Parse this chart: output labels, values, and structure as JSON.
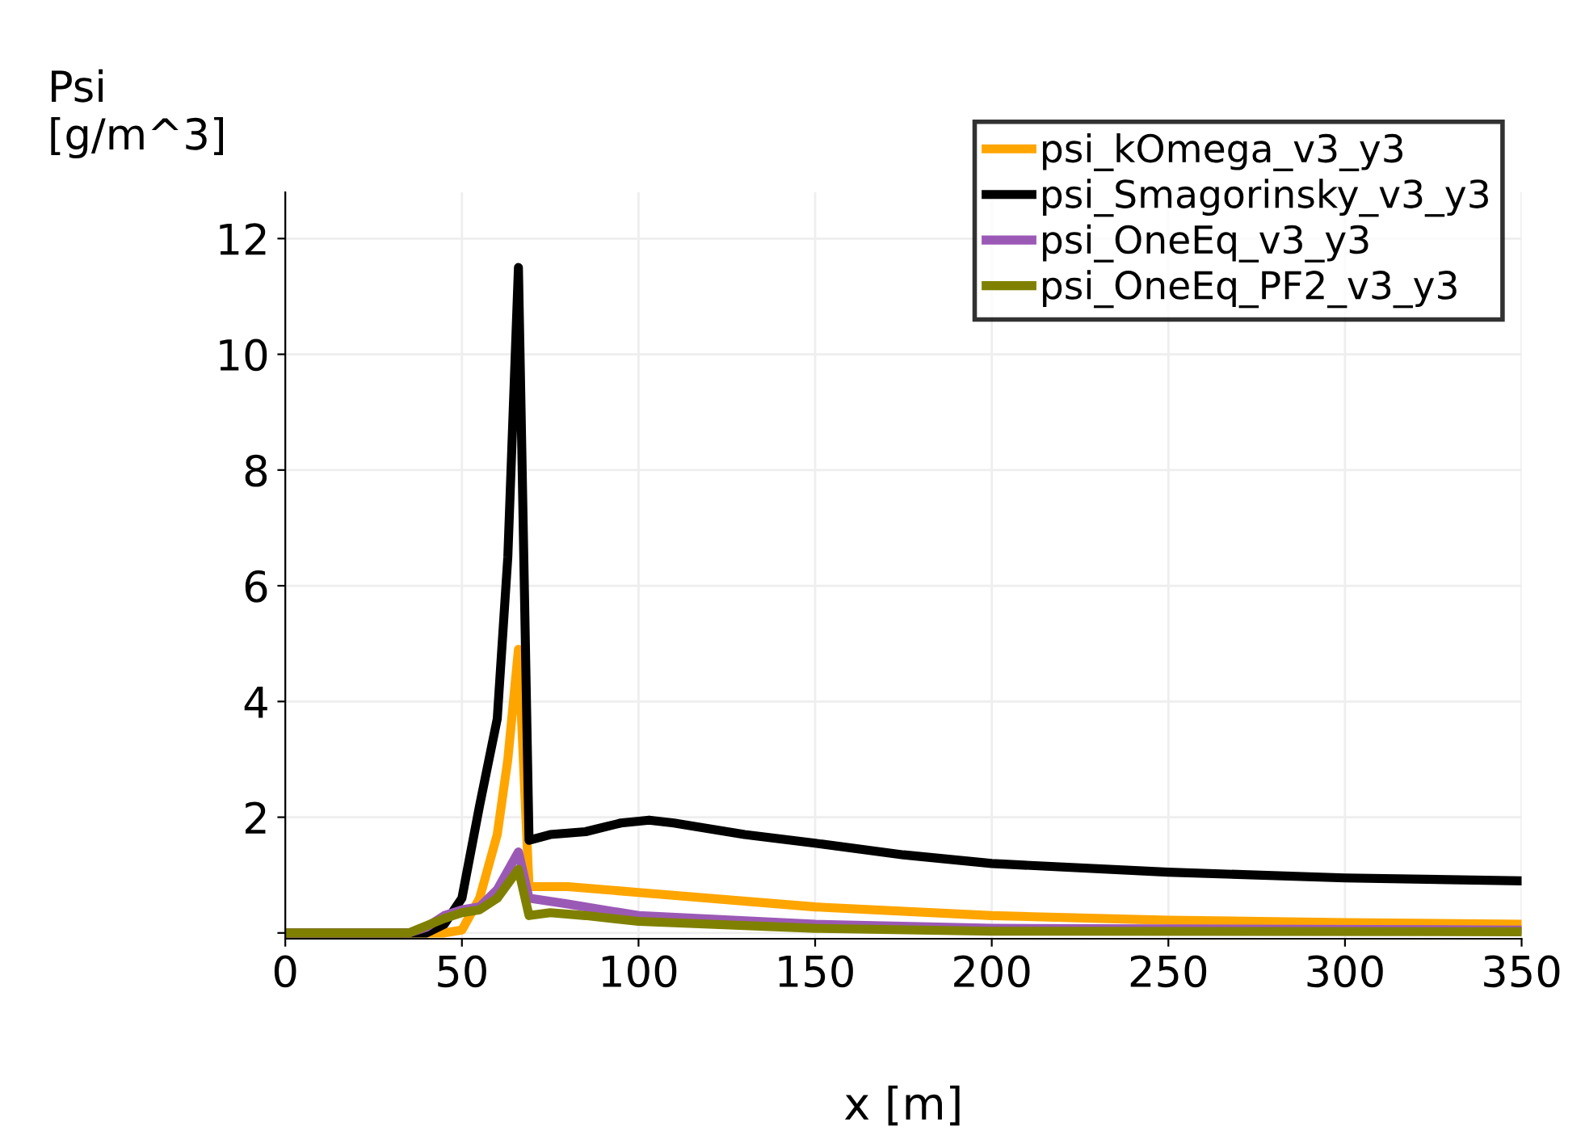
{
  "chart_data": {
    "type": "line",
    "xlabel": "x [m]",
    "ylabel": "Psi\n[g/m^3]",
    "xlim": [
      0,
      350
    ],
    "ylim": [
      -0.1,
      12.8
    ],
    "xticks": [
      0,
      50,
      100,
      150,
      200,
      250,
      300,
      350
    ],
    "yticks": [
      {
        "value": 0,
        "label": null
      },
      2,
      4,
      6,
      8,
      10,
      12
    ],
    "grid": true,
    "legend": "top right",
    "line_style": "solid",
    "marker": "none",
    "series": [
      {
        "name": "psi_kOmega_v3_y3",
        "color": "#ffa500",
        "x": [
          0,
          45,
          50,
          55,
          60,
          63,
          66,
          69,
          80,
          100,
          150,
          200,
          250,
          300,
          350
        ],
        "values": [
          0,
          0,
          0.05,
          0.6,
          1.7,
          3.0,
          4.9,
          0.8,
          0.8,
          0.7,
          0.45,
          0.3,
          0.22,
          0.18,
          0.15
        ]
      },
      {
        "name": "psi_Smagorinsky_v3_y3",
        "color": "#000000",
        "x": [
          0,
          35,
          40,
          45,
          50,
          55,
          60,
          63,
          66,
          69,
          75,
          85,
          95,
          103,
          110,
          130,
          150,
          175,
          200,
          250,
          300,
          350
        ],
        "values": [
          0,
          0,
          0,
          0.15,
          0.6,
          2.2,
          3.7,
          6.5,
          11.5,
          1.6,
          1.7,
          1.75,
          1.9,
          1.95,
          1.9,
          1.7,
          1.55,
          1.35,
          1.2,
          1.05,
          0.95,
          0.9
        ]
      },
      {
        "name": "psi_OneEq_v3_y3",
        "color": "#9b59b6",
        "x": [
          0,
          35,
          40,
          45,
          50,
          55,
          60,
          66,
          69,
          80,
          100,
          150,
          200,
          350
        ],
        "values": [
          0,
          0,
          0.1,
          0.3,
          0.4,
          0.45,
          0.75,
          1.4,
          0.6,
          0.5,
          0.3,
          0.15,
          0.08,
          0.05
        ]
      },
      {
        "name": "psi_OneEq_PF2_v3_y3",
        "color": "#808000",
        "x": [
          0,
          35,
          45,
          50,
          55,
          60,
          66,
          69,
          75,
          85,
          100,
          150,
          200,
          350
        ],
        "values": [
          0,
          0,
          0.25,
          0.35,
          0.4,
          0.6,
          1.1,
          0.3,
          0.35,
          0.3,
          0.2,
          0.08,
          0.03,
          0.02
        ]
      }
    ]
  }
}
